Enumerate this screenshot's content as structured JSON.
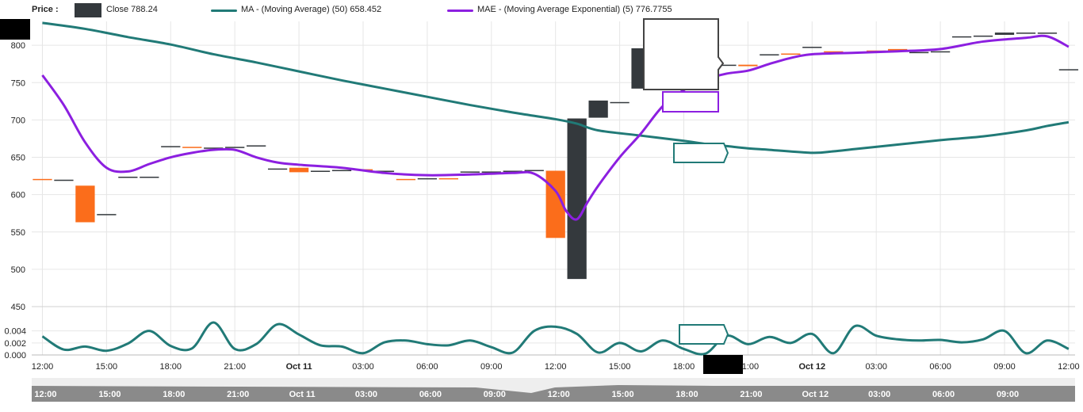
{
  "legend": {
    "price_label": "Price :",
    "close_label": "Close 788.24",
    "ma_label": "MA - (Moving Average) (50) 658.452",
    "mae_label": "MAE - (Moving Average Exponential) (5) 776.7755"
  },
  "colors": {
    "up": "#34393d",
    "down": "#fb6d1b",
    "faded": "#fde3d6",
    "ma": "#217a77",
    "mae": "#8c1fe0",
    "grid": "#e6e6e6",
    "navigator": "#8a8a8a"
  },
  "chart_data": [
    {
      "type": "candlestick",
      "title": "",
      "y_ticks": [
        450,
        500,
        550,
        600,
        650,
        700,
        750,
        800
      ],
      "ylim": [
        450,
        832
      ],
      "x_ticks": [
        "12:00",
        "15:00",
        "18:00",
        "21:00",
        "Oct 11",
        "03:00",
        "06:00",
        "09:00",
        "12:00",
        "15:00",
        "18:00",
        "21:00",
        "Oct 12",
        "03:00",
        "06:00",
        "09:00",
        "12:00"
      ],
      "x_tick_bold": [
        false,
        false,
        false,
        false,
        true,
        false,
        false,
        false,
        false,
        false,
        false,
        false,
        true,
        false,
        false,
        false,
        false
      ],
      "candles": [
        {
          "x": 0,
          "open": 621,
          "close": 620,
          "dir": "down"
        },
        {
          "x": 1,
          "open": 620,
          "close": 620,
          "dir": "flat"
        },
        {
          "x": 2,
          "open": 612,
          "close": 563,
          "dir": "down"
        },
        {
          "x": 3,
          "open": 574,
          "close": 574,
          "dir": "flat"
        },
        {
          "x": 4,
          "open": 624,
          "close": 624,
          "dir": "flat"
        },
        {
          "x": 5,
          "open": 624,
          "close": 624,
          "dir": "flat"
        },
        {
          "x": 6,
          "open": 665,
          "close": 665,
          "dir": "up"
        },
        {
          "x": 7,
          "open": 664,
          "close": 664,
          "dir": "down"
        },
        {
          "x": 8,
          "open": 663,
          "close": 663,
          "dir": "flat"
        },
        {
          "x": 9,
          "open": 664,
          "close": 664,
          "dir": "up"
        },
        {
          "x": 10,
          "open": 666,
          "close": 666,
          "dir": "flat"
        },
        {
          "x": 11,
          "open": 635,
          "close": 635,
          "dir": "flat"
        },
        {
          "x": 12,
          "open": 636,
          "close": 630,
          "dir": "down"
        },
        {
          "x": 13,
          "open": 632,
          "close": 632,
          "dir": "flat"
        },
        {
          "x": 14,
          "open": 633,
          "close": 633,
          "dir": "up"
        },
        {
          "x": 15,
          "open": 634,
          "close": 634,
          "dir": "down"
        },
        {
          "x": 16,
          "open": 632,
          "close": 632,
          "dir": "flat"
        },
        {
          "x": 17,
          "open": 621,
          "close": 621,
          "dir": "down"
        },
        {
          "x": 18,
          "open": 622,
          "close": 622,
          "dir": "flat"
        },
        {
          "x": 19,
          "open": 622,
          "close": 621,
          "dir": "down"
        },
        {
          "x": 20,
          "open": 631,
          "close": 631,
          "dir": "up"
        },
        {
          "x": 21,
          "open": 631,
          "close": 631,
          "dir": "flat"
        },
        {
          "x": 22,
          "open": 632,
          "close": 632,
          "dir": "flat"
        },
        {
          "x": 23,
          "open": 633,
          "close": 633,
          "dir": "flat"
        },
        {
          "x": 24,
          "open": 632,
          "close": 542,
          "dir": "down"
        },
        {
          "x": 25,
          "open": 487,
          "close": 702,
          "dir": "up"
        },
        {
          "x": 26,
          "open": 703,
          "close": 726,
          "dir": "up"
        },
        {
          "x": 27,
          "open": 724,
          "close": 724,
          "dir": "flat"
        },
        {
          "x": 28,
          "open": 742,
          "close": 796,
          "dir": "up"
        },
        {
          "x": 29,
          "open": 797,
          "close": 797,
          "dir": "flat"
        },
        {
          "x": 30,
          "open": 797,
          "close": 782,
          "dir": "faded"
        },
        {
          "x": 31,
          "open": 775,
          "close": 775,
          "dir": "flat"
        },
        {
          "x": 32,
          "open": 774,
          "close": 774,
          "dir": "flat"
        },
        {
          "x": 33,
          "open": 774,
          "close": 772,
          "dir": "down"
        },
        {
          "x": 34,
          "open": 788,
          "close": 788,
          "dir": "flat"
        },
        {
          "x": 35,
          "open": 789,
          "close": 788,
          "dir": "down"
        },
        {
          "x": 36,
          "open": 798,
          "close": 798,
          "dir": "up"
        },
        {
          "x": 37,
          "open": 792,
          "close": 792,
          "dir": "down"
        },
        {
          "x": 38,
          "open": 791,
          "close": 791,
          "dir": "flat"
        },
        {
          "x": 39,
          "open": 793,
          "close": 793,
          "dir": "down"
        },
        {
          "x": 40,
          "open": 795,
          "close": 792,
          "dir": "down"
        },
        {
          "x": 41,
          "open": 791,
          "close": 791,
          "dir": "flat"
        },
        {
          "x": 42,
          "open": 792,
          "close": 792,
          "dir": "flat"
        },
        {
          "x": 43,
          "open": 812,
          "close": 812,
          "dir": "flat"
        },
        {
          "x": 44,
          "open": 813,
          "close": 813,
          "dir": "flat"
        },
        {
          "x": 45,
          "open": 817,
          "close": 814,
          "dir": "up"
        },
        {
          "x": 46,
          "open": 817,
          "close": 817,
          "dir": "flat"
        },
        {
          "x": 47,
          "open": 817,
          "close": 817,
          "dir": "flat"
        },
        {
          "x": 48,
          "open": 768,
          "close": 768,
          "dir": "flat"
        }
      ],
      "series": [
        {
          "name": "MA - (Moving Average) (50)",
          "x": [
            0,
            2,
            4,
            6,
            8,
            10,
            12,
            14,
            16,
            18,
            20,
            22,
            24,
            25,
            26,
            28,
            30,
            31,
            32,
            33,
            34,
            36,
            37,
            38,
            40,
            42,
            44,
            46,
            47,
            48
          ],
          "values": [
            830,
            822,
            811,
            801,
            788,
            777,
            765,
            753,
            742,
            731,
            720,
            710,
            701,
            695,
            686,
            679,
            672,
            668,
            665,
            662,
            660,
            656,
            658,
            661,
            667,
            673,
            678,
            686,
            692,
            697
          ]
        },
        {
          "name": "MAE - (Moving Average Exponential) (5)",
          "x": [
            0,
            1,
            2,
            3,
            4,
            5,
            6,
            7,
            8,
            9,
            10,
            11,
            12,
            14,
            16,
            18,
            20,
            22,
            23,
            24,
            24.5,
            25,
            25.5,
            26,
            27,
            28,
            29,
            30,
            31,
            32,
            33,
            34,
            35,
            36,
            38,
            40,
            42,
            44,
            46,
            47,
            48
          ],
          "values": [
            760,
            720,
            670,
            636,
            631,
            641,
            650,
            656,
            660,
            660,
            650,
            643,
            640,
            636,
            629,
            626,
            627,
            629,
            628,
            605,
            578,
            567,
            590,
            612,
            650,
            682,
            718,
            740,
            754,
            762,
            766,
            775,
            783,
            788,
            790,
            792,
            795,
            805,
            810,
            812,
            798
          ]
        }
      ],
      "indicator_series": {
        "y_ticks": [
          0.0,
          0.002,
          0.004
        ],
        "ylim": [
          0,
          0.0058
        ],
        "x": [
          0,
          1,
          2,
          3,
          4,
          5,
          6,
          7,
          8,
          9,
          10,
          11,
          12,
          13,
          14,
          15,
          16,
          17,
          18,
          19,
          20,
          21,
          22,
          23,
          24,
          25,
          26,
          27,
          28,
          29,
          30,
          31,
          32,
          33,
          34,
          35,
          36,
          37,
          38,
          39,
          40,
          41,
          42,
          43,
          44,
          45,
          46,
          47,
          48
        ],
        "values": [
          0.0031,
          0.0009,
          0.0014,
          0.0007,
          0.0019,
          0.004,
          0.0015,
          0.0011,
          0.0054,
          0.001,
          0.0018,
          0.0051,
          0.0034,
          0.0016,
          0.0014,
          0.0003,
          0.0021,
          0.0024,
          0.0018,
          0.0016,
          0.0024,
          0.0013,
          0.0004,
          0.004,
          0.0047,
          0.0035,
          0.0004,
          0.002,
          0.0006,
          0.0024,
          0.001,
          0.0002,
          0.0032,
          0.0018,
          0.003,
          0.002,
          0.0035,
          0.0003,
          0.0048,
          0.0032,
          0.0026,
          0.0024,
          0.0025,
          0.0021,
          0.0026,
          0.004,
          0.0003,
          0.0024,
          0.001
        ]
      }
    }
  ],
  "navigator": {
    "x_ticks": [
      "12:00",
      "15:00",
      "18:00",
      "21:00",
      "Oct 11",
      "03:00",
      "06:00",
      "09:00",
      "12:00",
      "15:00",
      "18:00",
      "21:00",
      "Oct 12",
      "03:00",
      "06:00",
      "09:00"
    ]
  }
}
